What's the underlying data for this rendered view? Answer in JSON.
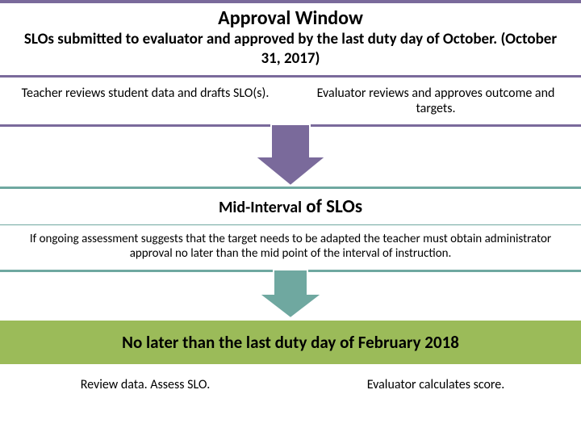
{
  "section1": {
    "accent": "#7a6a9b",
    "title": "Approval Window",
    "subtitle": "SLOs submitted to evaluator and approved by the last duty day of October. (October 31, 2017)",
    "left": "Teacher reviews student data and drafts SLO(s).",
    "right": "Evaluator reviews and approves outcome and targets."
  },
  "arrow1": {
    "fill": "#7a6a9b",
    "stroke": "#ffffff",
    "width": 88,
    "stem_width": 48,
    "stem_height": 40,
    "head_height": 36
  },
  "section2": {
    "accent": "#6fa8a0",
    "title_a": "Mid-Interval",
    "title_b": " of SLOs",
    "body": "If ongoing assessment suggests that the target needs to be adapted the teacher must obtain administrator approval no later than the mid point of the interval of instruction."
  },
  "arrow2": {
    "fill": "#6fa8a0",
    "stroke": "#ffffff",
    "width": 78,
    "stem_width": 42,
    "stem_height": 30,
    "head_height": 30
  },
  "section3": {
    "bg": "#9bbb59",
    "header": "No later than the last duty day of February 2018",
    "left": "Review data.  Assess SLO.",
    "right": "Evaluator calculates score."
  }
}
